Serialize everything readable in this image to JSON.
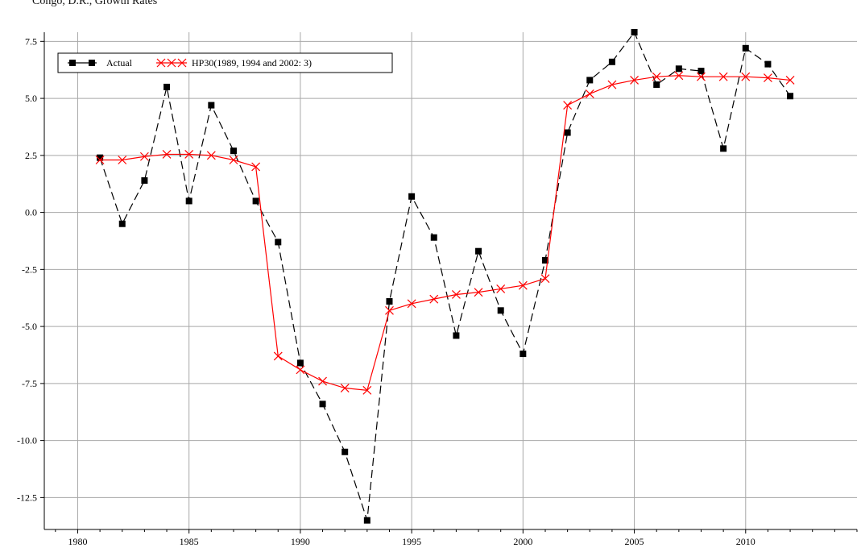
{
  "chart_data": {
    "type": "line",
    "title": "Congo, D.R., Growth Rates",
    "xlabel": "",
    "ylabel": "",
    "xlim": [
      1978.5,
      2015
    ],
    "ylim": [
      -13.9,
      7.9
    ],
    "grid": true,
    "legend_placement": "top-left",
    "x_ticks": [
      1980,
      1985,
      1990,
      1995,
      2000,
      2005,
      2010
    ],
    "y_ticks": [
      7.5,
      5.0,
      2.5,
      0.0,
      -2.5,
      -5.0,
      -7.5,
      -10.0,
      -12.5
    ],
    "y_tick_labels": [
      "7.5",
      "5.0",
      "2.5",
      "0.0",
      "-2.5",
      "-5.0",
      "-7.5",
      "-10.0",
      "-12.5"
    ],
    "x": [
      1981,
      1982,
      1983,
      1984,
      1985,
      1986,
      1987,
      1988,
      1989,
      1990,
      1991,
      1992,
      1993,
      1994,
      1995,
      1996,
      1997,
      1998,
      1999,
      2000,
      2001,
      2002,
      2003,
      2004,
      2005,
      2006,
      2007,
      2008,
      2009,
      2010,
      2011,
      2012
    ],
    "series": [
      {
        "name": "Actual",
        "color": "#000000",
        "marker": "square",
        "line_style": "dashed",
        "values": [
          2.4,
          -0.5,
          1.4,
          5.5,
          0.5,
          4.7,
          2.7,
          0.5,
          -1.3,
          -6.6,
          -8.4,
          -10.5,
          -13.5,
          -3.9,
          0.7,
          -1.1,
          -5.4,
          -1.7,
          -4.3,
          -6.2,
          -2.1,
          3.5,
          5.8,
          6.6,
          7.9,
          5.6,
          6.3,
          6.2,
          2.8,
          7.2,
          6.5,
          5.1
        ]
      },
      {
        "name": "HP30(1989, 1994 and 2002: 3)",
        "color": "#ff0000",
        "marker": "x",
        "line_style": "solid",
        "values": [
          2.3,
          2.3,
          2.45,
          2.55,
          2.55,
          2.5,
          2.3,
          2.0,
          -6.3,
          -6.9,
          -7.4,
          -7.7,
          -7.8,
          -4.3,
          -4.0,
          -3.8,
          -3.6,
          -3.5,
          -3.35,
          -3.2,
          -2.9,
          4.7,
          5.2,
          5.6,
          5.8,
          5.95,
          6.0,
          5.95,
          5.95,
          5.95,
          5.9,
          5.8
        ]
      }
    ]
  }
}
